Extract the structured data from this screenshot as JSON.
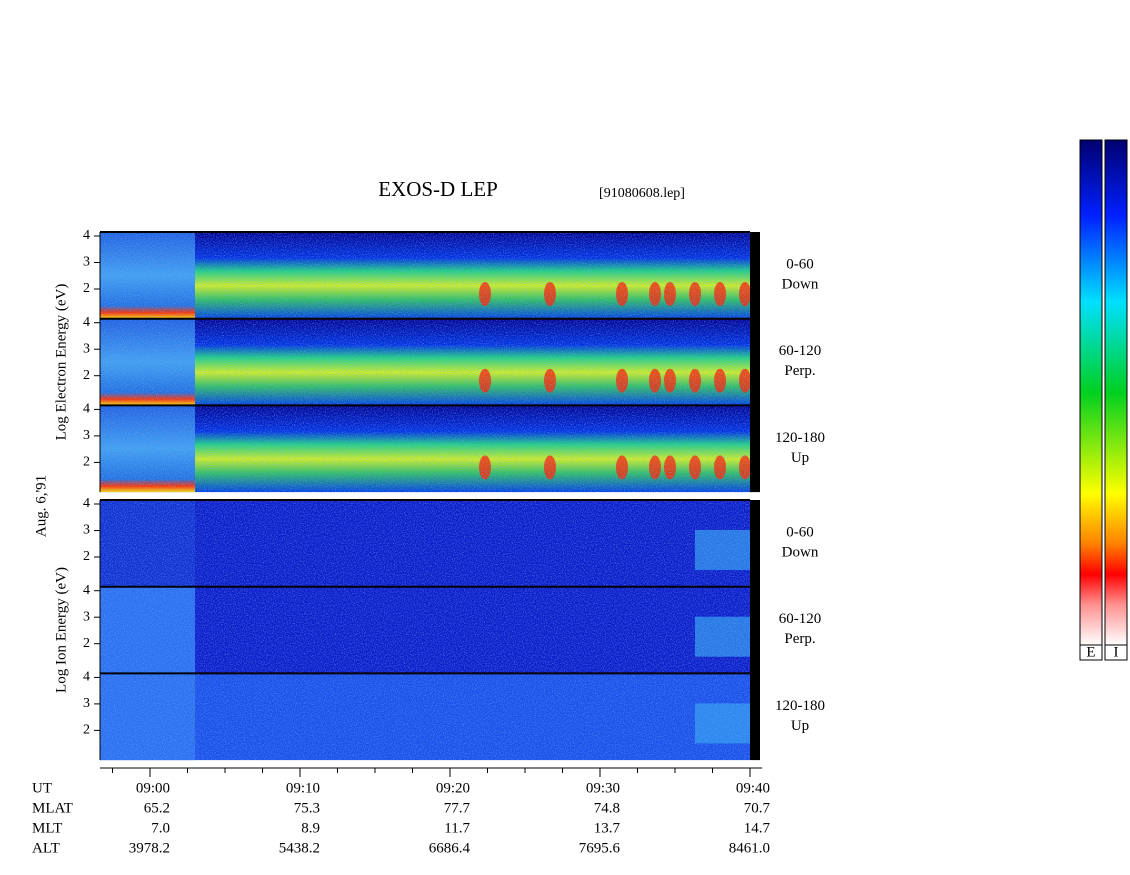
{
  "header": {
    "title": "EXOS-D LEP",
    "file": "[91080608.lep]",
    "date": "Aug. 6,'91"
  },
  "yticks": [
    "4",
    "3",
    "2"
  ],
  "groups": [
    {
      "ylabel": "Log Electron Energy (eV)",
      "panels": [
        {
          "range": "0-60",
          "direction": "Down"
        },
        {
          "range": "60-120",
          "direction": "Perp."
        },
        {
          "range": "120-180",
          "direction": "Up"
        }
      ]
    },
    {
      "ylabel": "Log Ion Energy (eV)",
      "panels": [
        {
          "range": "0-60",
          "direction": "Down"
        },
        {
          "range": "60-120",
          "direction": "Perp."
        },
        {
          "range": "120-180",
          "direction": "Up"
        }
      ]
    }
  ],
  "time_axis": {
    "row_labels": [
      "UT",
      "MLAT",
      "MLT",
      "ALT"
    ],
    "columns": [
      [
        "09:00",
        "65.2",
        "7.0",
        "3978.2"
      ],
      [
        "09:10",
        "75.3",
        "8.9",
        "5438.2"
      ],
      [
        "09:20",
        "77.7",
        "11.7",
        "6686.4"
      ],
      [
        "09:30",
        "74.8",
        "13.7",
        "7695.6"
      ],
      [
        "09:40",
        "70.7",
        "14.7",
        "8461.0"
      ]
    ]
  },
  "colorbar": {
    "labels": [
      "E",
      "I"
    ]
  }
}
